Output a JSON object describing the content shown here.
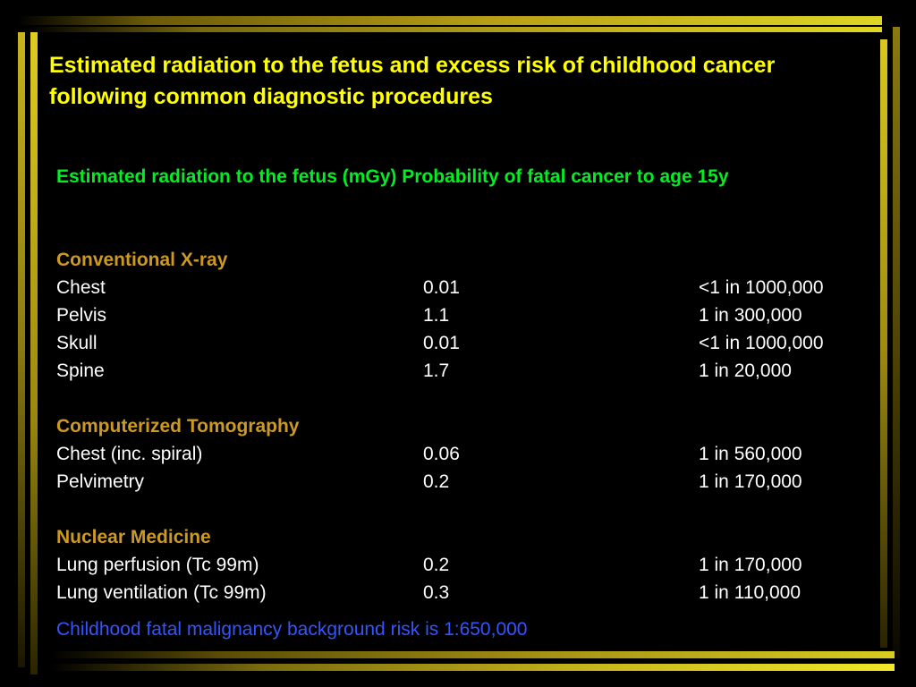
{
  "title": "Estimated radiation to the fetus and excess risk of childhood cancer  following common diagnostic procedures",
  "subheader": "Estimated radiation to the fetus (mGy)  Probability of fatal cancer to age 15y",
  "sections": [
    {
      "title": "Conventional X-ray",
      "rows": [
        {
          "procedure": "Chest",
          "dose": "0.01",
          "risk": "<1 in 1000,000"
        },
        {
          "procedure": "Pelvis",
          "dose": "1.1",
          "risk": "1 in 300,000"
        },
        {
          "procedure": "Skull",
          "dose": "0.01",
          "risk": "<1 in 1000,000"
        },
        {
          "procedure": "Spine",
          "dose": "1.7",
          "risk": "1 in 20,000"
        }
      ]
    },
    {
      "title": "Computerized Tomography",
      "rows": [
        {
          "procedure": "Chest (inc. spiral)",
          "dose": "0.06",
          "risk": "1 in 560,000"
        },
        {
          "procedure": "Pelvimetry",
          "dose": "0.2",
          "risk": "1 in 170,000"
        }
      ]
    },
    {
      "title": "Nuclear Medicine",
      "rows": [
        {
          "procedure": "Lung perfusion (Tc 99m)",
          "dose": "0.2",
          "risk": "1 in 170,000"
        },
        {
          "procedure": "Lung ventilation (Tc 99m)",
          "dose": "0.3",
          "risk": "1 in 110,000"
        }
      ]
    }
  ],
  "footer": "Childhood fatal malignancy background risk is 1:650,000",
  "colors": {
    "background": "#000000",
    "title": "#ffff00",
    "subheader": "#00ee22",
    "section": "#cc9922",
    "body_text": "#ffffff",
    "footer": "#3355ff",
    "frame_gold": "#c8b41c"
  }
}
